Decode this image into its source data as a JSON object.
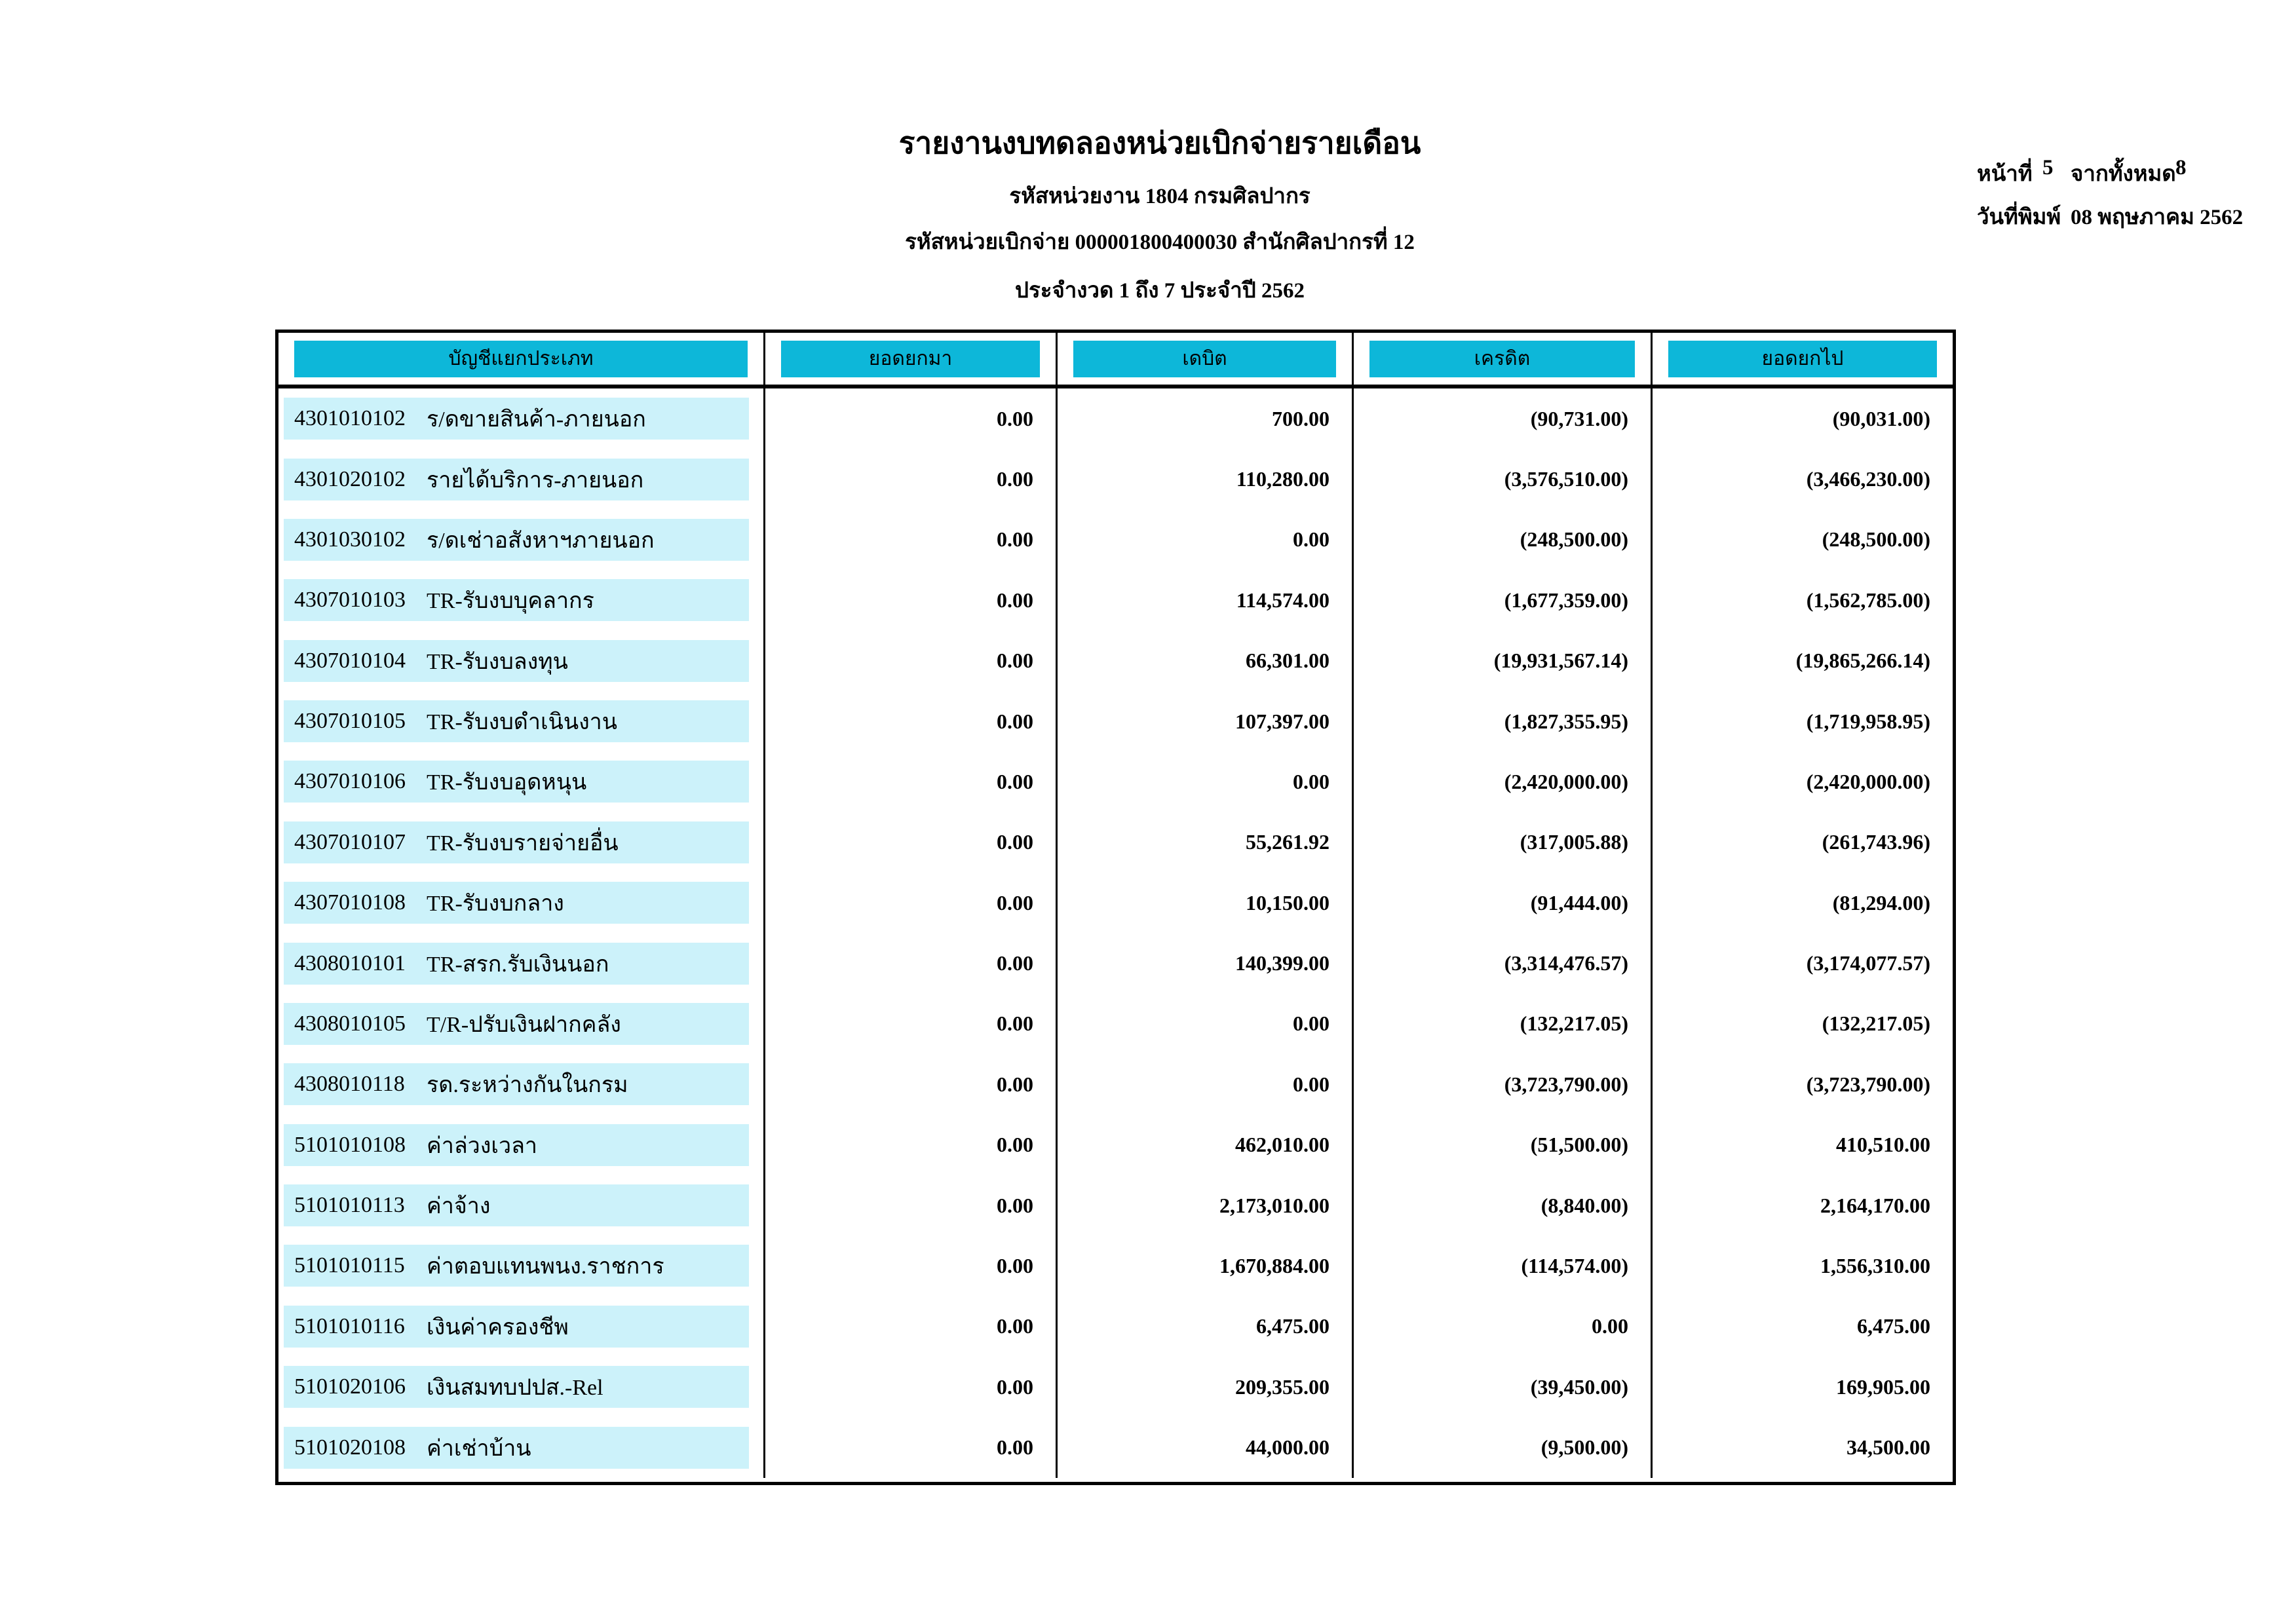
{
  "doc": {
    "title": "รายงานงบทดลองหน่วยเบิกจ่ายรายเดือน",
    "agency_line": "รหัสหน่วยงาน 1804 กรมศิลปากร",
    "unit_line": "รหัสหน่วยเบิกจ่าย 000001800400030 สำนักศิลปากรที่ 12",
    "period_line": "ประจำงวด 1 ถึง 7 ประจำปี 2562"
  },
  "page_info": {
    "page_label": "หน้าที่",
    "page_number": "5",
    "total_label": "จากทั้งหมด",
    "total_pages": "8",
    "print_date_label": "วันที่พิมพ์",
    "print_date": "08 พฤษภาคม 2562"
  },
  "colors": {
    "header_fill": "#0db7d9",
    "row_fill": "#ccf2fa"
  },
  "table": {
    "columns": [
      "บัญชีแยกประเภท",
      "ยอดยกมา",
      "เดบิต",
      "เครดิต",
      "ยอดยกไป"
    ],
    "rows": [
      {
        "code": "4301010102",
        "name": "ร/ดขายสินค้า-ภายนอก",
        "broughtForward": "0.00",
        "debit": "700.00",
        "credit": "(90,731.00)",
        "carriedForward": "(90,031.00)"
      },
      {
        "code": "4301020102",
        "name": "รายได้บริการ-ภายนอก",
        "broughtForward": "0.00",
        "debit": "110,280.00",
        "credit": "(3,576,510.00)",
        "carriedForward": "(3,466,230.00)"
      },
      {
        "code": "4301030102",
        "name": "ร/ดเช่าอสังหาฯภายนอก",
        "broughtForward": "0.00",
        "debit": "0.00",
        "credit": "(248,500.00)",
        "carriedForward": "(248,500.00)"
      },
      {
        "code": "4307010103",
        "name": "TR-รับงบบุคลากร",
        "broughtForward": "0.00",
        "debit": "114,574.00",
        "credit": "(1,677,359.00)",
        "carriedForward": "(1,562,785.00)"
      },
      {
        "code": "4307010104",
        "name": "TR-รับงบลงทุน",
        "broughtForward": "0.00",
        "debit": "66,301.00",
        "credit": "(19,931,567.14)",
        "carriedForward": "(19,865,266.14)"
      },
      {
        "code": "4307010105",
        "name": "TR-รับงบดำเนินงาน",
        "broughtForward": "0.00",
        "debit": "107,397.00",
        "credit": "(1,827,355.95)",
        "carriedForward": "(1,719,958.95)"
      },
      {
        "code": "4307010106",
        "name": "TR-รับงบอุดหนุน",
        "broughtForward": "0.00",
        "debit": "0.00",
        "credit": "(2,420,000.00)",
        "carriedForward": "(2,420,000.00)"
      },
      {
        "code": "4307010107",
        "name": "TR-รับงบรายจ่ายอื่น",
        "broughtForward": "0.00",
        "debit": "55,261.92",
        "credit": "(317,005.88)",
        "carriedForward": "(261,743.96)"
      },
      {
        "code": "4307010108",
        "name": "TR-รับงบกลาง",
        "broughtForward": "0.00",
        "debit": "10,150.00",
        "credit": "(91,444.00)",
        "carriedForward": "(81,294.00)"
      },
      {
        "code": "4308010101",
        "name": "TR-สรก.รับเงินนอก",
        "broughtForward": "0.00",
        "debit": "140,399.00",
        "credit": "(3,314,476.57)",
        "carriedForward": "(3,174,077.57)"
      },
      {
        "code": "4308010105",
        "name": "T/R-ปรับเงินฝากคลัง",
        "broughtForward": "0.00",
        "debit": "0.00",
        "credit": "(132,217.05)",
        "carriedForward": "(132,217.05)"
      },
      {
        "code": "4308010118",
        "name": "รด.ระหว่างกันในกรม",
        "broughtForward": "0.00",
        "debit": "0.00",
        "credit": "(3,723,790.00)",
        "carriedForward": "(3,723,790.00)"
      },
      {
        "code": "5101010108",
        "name": "ค่าล่วงเวลา",
        "broughtForward": "0.00",
        "debit": "462,010.00",
        "credit": "(51,500.00)",
        "carriedForward": "410,510.00"
      },
      {
        "code": "5101010113",
        "name": "ค่าจ้าง",
        "broughtForward": "0.00",
        "debit": "2,173,010.00",
        "credit": "(8,840.00)",
        "carriedForward": "2,164,170.00"
      },
      {
        "code": "5101010115",
        "name": "ค่าตอบแทนพนง.ราชการ",
        "broughtForward": "0.00",
        "debit": "1,670,884.00",
        "credit": "(114,574.00)",
        "carriedForward": "1,556,310.00"
      },
      {
        "code": "5101010116",
        "name": "เงินค่าครองชีพ",
        "broughtForward": "0.00",
        "debit": "6,475.00",
        "credit": "0.00",
        "carriedForward": "6,475.00"
      },
      {
        "code": "5101020106",
        "name": "เงินสมทบปปส.-Rel",
        "broughtForward": "0.00",
        "debit": "209,355.00",
        "credit": "(39,450.00)",
        "carriedForward": "169,905.00"
      },
      {
        "code": "5101020108",
        "name": "ค่าเช่าบ้าน",
        "broughtForward": "0.00",
        "debit": "44,000.00",
        "credit": "(9,500.00)",
        "carriedForward": "34,500.00"
      }
    ]
  }
}
